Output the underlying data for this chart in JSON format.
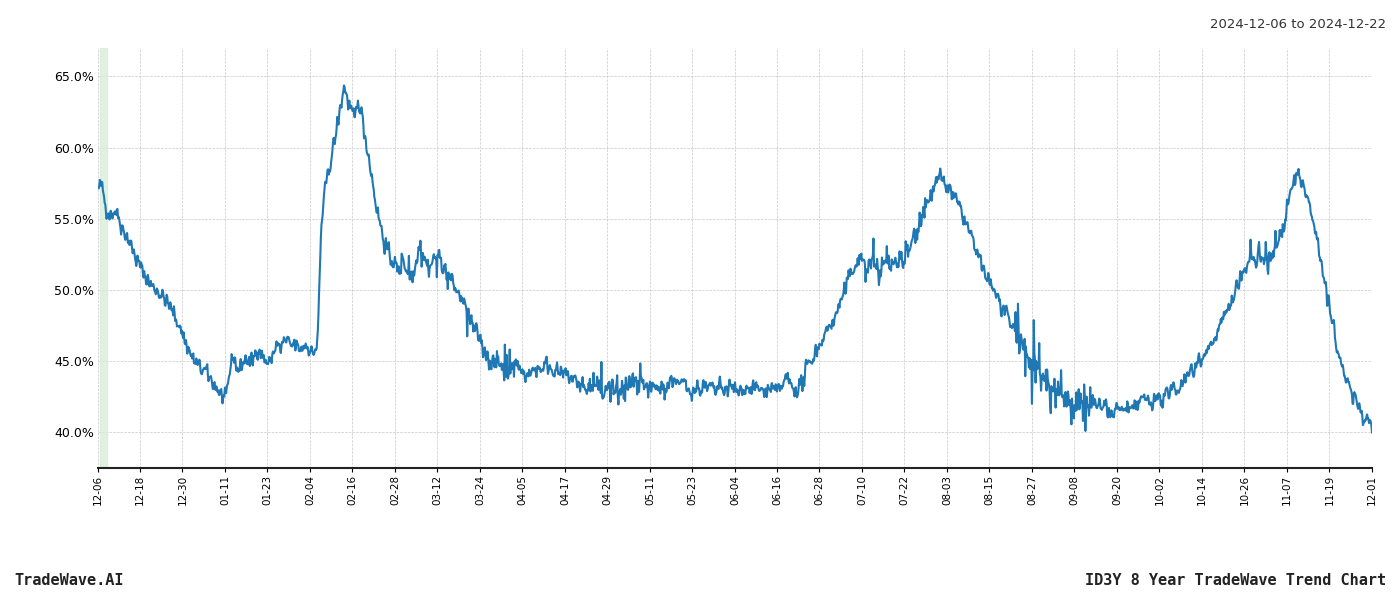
{
  "title_right": "2024-12-06 to 2024-12-22",
  "footer_left": "TradeWave.AI",
  "footer_right": "ID3Y 8 Year TradeWave Trend Chart",
  "line_color": "#1f77b4",
  "line_width": 1.5,
  "bg_color": "#ffffff",
  "grid_color": "#bbbbbb",
  "highlight_color": "#d4ecd4",
  "highlight_alpha": 0.7,
  "ylim": [
    0.375,
    0.67
  ],
  "yticks": [
    0.4,
    0.45,
    0.5,
    0.55,
    0.6,
    0.65
  ],
  "x_tick_labels": [
    "12-06",
    "12-18",
    "12-30",
    "01-11",
    "01-23",
    "02-04",
    "02-16",
    "02-28",
    "03-12",
    "03-24",
    "04-05",
    "04-17",
    "04-29",
    "05-11",
    "05-23",
    "06-04",
    "06-16",
    "06-28",
    "07-10",
    "07-22",
    "08-03",
    "08-15",
    "08-27",
    "09-08",
    "09-20",
    "10-02",
    "10-14",
    "10-26",
    "11-07",
    "11-19",
    "12-01"
  ],
  "control_points": [
    [
      0.0,
      0.57
    ],
    [
      0.002,
      0.575
    ],
    [
      0.004,
      0.568
    ],
    [
      0.006,
      0.558
    ],
    [
      0.008,
      0.555
    ],
    [
      0.01,
      0.553
    ],
    [
      0.013,
      0.556
    ],
    [
      0.016,
      0.552
    ],
    [
      0.018,
      0.545
    ],
    [
      0.021,
      0.54
    ],
    [
      0.024,
      0.535
    ],
    [
      0.027,
      0.528
    ],
    [
      0.03,
      0.521
    ],
    [
      0.034,
      0.515
    ],
    [
      0.038,
      0.508
    ],
    [
      0.042,
      0.503
    ],
    [
      0.046,
      0.5
    ],
    [
      0.05,
      0.496
    ],
    [
      0.055,
      0.49
    ],
    [
      0.06,
      0.482
    ],
    [
      0.065,
      0.472
    ],
    [
      0.07,
      0.46
    ],
    [
      0.075,
      0.45
    ],
    [
      0.08,
      0.445
    ],
    [
      0.085,
      0.442
    ],
    [
      0.09,
      0.435
    ],
    [
      0.095,
      0.428
    ],
    [
      0.1,
      0.422
    ],
    [
      0.104,
      0.448
    ],
    [
      0.106,
      0.455
    ],
    [
      0.108,
      0.448
    ],
    [
      0.11,
      0.443
    ],
    [
      0.113,
      0.448
    ],
    [
      0.116,
      0.452
    ],
    [
      0.119,
      0.448
    ],
    [
      0.122,
      0.452
    ],
    [
      0.125,
      0.46
    ],
    [
      0.128,
      0.455
    ],
    [
      0.131,
      0.45
    ],
    [
      0.134,
      0.448
    ],
    [
      0.137,
      0.455
    ],
    [
      0.14,
      0.462
    ],
    [
      0.143,
      0.458
    ],
    [
      0.146,
      0.465
    ],
    [
      0.149,
      0.463
    ],
    [
      0.152,
      0.46
    ],
    [
      0.154,
      0.463
    ],
    [
      0.156,
      0.46
    ],
    [
      0.159,
      0.458
    ],
    [
      0.162,
      0.462
    ],
    [
      0.165,
      0.46
    ],
    [
      0.168,
      0.455
    ],
    [
      0.17,
      0.458
    ],
    [
      0.172,
      0.46
    ],
    [
      0.175,
      0.545
    ],
    [
      0.178,
      0.57
    ],
    [
      0.181,
      0.585
    ],
    [
      0.184,
      0.598
    ],
    [
      0.186,
      0.607
    ],
    [
      0.188,
      0.618
    ],
    [
      0.19,
      0.628
    ],
    [
      0.192,
      0.638
    ],
    [
      0.193,
      0.645
    ],
    [
      0.195,
      0.635
    ],
    [
      0.197,
      0.63
    ],
    [
      0.199,
      0.625
    ],
    [
      0.201,
      0.618
    ],
    [
      0.203,
      0.628
    ],
    [
      0.205,
      0.632
    ],
    [
      0.207,
      0.622
    ],
    [
      0.209,
      0.61
    ],
    [
      0.212,
      0.595
    ],
    [
      0.215,
      0.578
    ],
    [
      0.218,
      0.56
    ],
    [
      0.221,
      0.548
    ],
    [
      0.224,
      0.535
    ],
    [
      0.227,
      0.527
    ],
    [
      0.23,
      0.522
    ],
    [
      0.233,
      0.518
    ],
    [
      0.236,
      0.512
    ],
    [
      0.239,
      0.52
    ],
    [
      0.242,
      0.515
    ],
    [
      0.245,
      0.51
    ],
    [
      0.248,
      0.512
    ],
    [
      0.251,
      0.53
    ],
    [
      0.254,
      0.528
    ],
    [
      0.257,
      0.52
    ],
    [
      0.26,
      0.515
    ],
    [
      0.263,
      0.522
    ],
    [
      0.266,
      0.525
    ],
    [
      0.269,
      0.52
    ],
    [
      0.272,
      0.515
    ],
    [
      0.275,
      0.51
    ],
    [
      0.278,
      0.505
    ],
    [
      0.281,
      0.5
    ],
    [
      0.284,
      0.495
    ],
    [
      0.287,
      0.49
    ],
    [
      0.29,
      0.483
    ],
    [
      0.294,
      0.475
    ],
    [
      0.298,
      0.468
    ],
    [
      0.302,
      0.46
    ],
    [
      0.306,
      0.453
    ],
    [
      0.31,
      0.448
    ],
    [
      0.314,
      0.45
    ],
    [
      0.318,
      0.445
    ],
    [
      0.322,
      0.443
    ],
    [
      0.326,
      0.45
    ],
    [
      0.33,
      0.445
    ],
    [
      0.334,
      0.442
    ],
    [
      0.338,
      0.44
    ],
    [
      0.343,
      0.445
    ],
    [
      0.348,
      0.445
    ],
    [
      0.352,
      0.448
    ],
    [
      0.356,
      0.445
    ],
    [
      0.36,
      0.443
    ],
    [
      0.364,
      0.44
    ],
    [
      0.368,
      0.44
    ],
    [
      0.372,
      0.438
    ],
    [
      0.376,
      0.435
    ],
    [
      0.38,
      0.432
    ],
    [
      0.384,
      0.43
    ],
    [
      0.388,
      0.43
    ],
    [
      0.392,
      0.432
    ],
    [
      0.396,
      0.428
    ],
    [
      0.4,
      0.43
    ],
    [
      0.404,
      0.432
    ],
    [
      0.408,
      0.428
    ],
    [
      0.412,
      0.43
    ],
    [
      0.415,
      0.435
    ],
    [
      0.418,
      0.432
    ],
    [
      0.421,
      0.435
    ],
    [
      0.424,
      0.432
    ],
    [
      0.427,
      0.435
    ],
    [
      0.43,
      0.432
    ],
    [
      0.433,
      0.43
    ],
    [
      0.436,
      0.432
    ],
    [
      0.439,
      0.43
    ],
    [
      0.442,
      0.432
    ],
    [
      0.445,
      0.43
    ],
    [
      0.448,
      0.435
    ],
    [
      0.452,
      0.438
    ],
    [
      0.456,
      0.432
    ],
    [
      0.46,
      0.435
    ],
    [
      0.463,
      0.43
    ],
    [
      0.465,
      0.432
    ],
    [
      0.467,
      0.428
    ],
    [
      0.47,
      0.432
    ],
    [
      0.472,
      0.43
    ],
    [
      0.475,
      0.432
    ],
    [
      0.478,
      0.43
    ],
    [
      0.481,
      0.432
    ],
    [
      0.484,
      0.428
    ],
    [
      0.487,
      0.432
    ],
    [
      0.49,
      0.43
    ],
    [
      0.493,
      0.43
    ],
    [
      0.496,
      0.432
    ],
    [
      0.499,
      0.43
    ],
    [
      0.502,
      0.428
    ],
    [
      0.505,
      0.43
    ],
    [
      0.508,
      0.432
    ],
    [
      0.511,
      0.43
    ],
    [
      0.514,
      0.432
    ],
    [
      0.517,
      0.43
    ],
    [
      0.52,
      0.43
    ],
    [
      0.524,
      0.428
    ],
    [
      0.528,
      0.432
    ],
    [
      0.532,
      0.428
    ],
    [
      0.535,
      0.43
    ],
    [
      0.538,
      0.435
    ],
    [
      0.541,
      0.438
    ],
    [
      0.544,
      0.432
    ],
    [
      0.547,
      0.43
    ],
    [
      0.55,
      0.432
    ],
    [
      0.553,
      0.435
    ],
    [
      0.556,
      0.445
    ],
    [
      0.559,
      0.45
    ],
    [
      0.562,
      0.455
    ],
    [
      0.565,
      0.46
    ],
    [
      0.568,
      0.465
    ],
    [
      0.571,
      0.47
    ],
    [
      0.574,
      0.475
    ],
    [
      0.578,
      0.48
    ],
    [
      0.582,
      0.49
    ],
    [
      0.586,
      0.5
    ],
    [
      0.59,
      0.51
    ],
    [
      0.594,
      0.518
    ],
    [
      0.598,
      0.522
    ],
    [
      0.601,
      0.52
    ],
    [
      0.604,
      0.515
    ],
    [
      0.607,
      0.52
    ],
    [
      0.61,
      0.518
    ],
    [
      0.613,
      0.515
    ],
    [
      0.616,
      0.518
    ],
    [
      0.619,
      0.52
    ],
    [
      0.622,
      0.515
    ],
    [
      0.625,
      0.518
    ],
    [
      0.628,
      0.522
    ],
    [
      0.631,
      0.52
    ],
    [
      0.634,
      0.525
    ],
    [
      0.637,
      0.53
    ],
    [
      0.64,
      0.538
    ],
    [
      0.643,
      0.545
    ],
    [
      0.646,
      0.552
    ],
    [
      0.649,
      0.558
    ],
    [
      0.652,
      0.565
    ],
    [
      0.655,
      0.57
    ],
    [
      0.658,
      0.575
    ],
    [
      0.661,
      0.58
    ],
    [
      0.664,
      0.575
    ],
    [
      0.667,
      0.572
    ],
    [
      0.67,
      0.568
    ],
    [
      0.673,
      0.563
    ],
    [
      0.676,
      0.558
    ],
    [
      0.679,
      0.552
    ],
    [
      0.682,
      0.545
    ],
    [
      0.685,
      0.538
    ],
    [
      0.688,
      0.53
    ],
    [
      0.691,
      0.522
    ],
    [
      0.694,
      0.515
    ],
    [
      0.697,
      0.51
    ],
    [
      0.7,
      0.505
    ],
    [
      0.703,
      0.5
    ],
    [
      0.706,
      0.495
    ],
    [
      0.709,
      0.488
    ],
    [
      0.712,
      0.482
    ],
    [
      0.715,
      0.478
    ],
    [
      0.718,
      0.473
    ],
    [
      0.721,
      0.468
    ],
    [
      0.724,
      0.463
    ],
    [
      0.727,
      0.46
    ],
    [
      0.73,
      0.455
    ],
    [
      0.733,
      0.45
    ],
    [
      0.736,
      0.448
    ],
    [
      0.739,
      0.442
    ],
    [
      0.742,
      0.438
    ],
    [
      0.745,
      0.435
    ],
    [
      0.748,
      0.432
    ],
    [
      0.751,
      0.43
    ],
    [
      0.754,
      0.428
    ],
    [
      0.757,
      0.427
    ],
    [
      0.76,
      0.425
    ],
    [
      0.763,
      0.42
    ],
    [
      0.766,
      0.415
    ],
    [
      0.769,
      0.418
    ],
    [
      0.772,
      0.42
    ],
    [
      0.775,
      0.415
    ],
    [
      0.778,
      0.418
    ],
    [
      0.781,
      0.422
    ],
    [
      0.784,
      0.418
    ],
    [
      0.787,
      0.415
    ],
    [
      0.79,
      0.42
    ],
    [
      0.793,
      0.415
    ],
    [
      0.796,
      0.412
    ],
    [
      0.799,
      0.415
    ],
    [
      0.802,
      0.418
    ],
    [
      0.805,
      0.415
    ],
    [
      0.808,
      0.418
    ],
    [
      0.811,
      0.415
    ],
    [
      0.814,
      0.418
    ],
    [
      0.817,
      0.422
    ],
    [
      0.82,
      0.425
    ],
    [
      0.823,
      0.422
    ],
    [
      0.826,
      0.42
    ],
    [
      0.829,
      0.422
    ],
    [
      0.832,
      0.425
    ],
    [
      0.835,
      0.422
    ],
    [
      0.838,
      0.425
    ],
    [
      0.841,
      0.428
    ],
    [
      0.844,
      0.432
    ],
    [
      0.847,
      0.43
    ],
    [
      0.85,
      0.435
    ],
    [
      0.853,
      0.438
    ],
    [
      0.856,
      0.442
    ],
    [
      0.859,
      0.445
    ],
    [
      0.862,
      0.448
    ],
    [
      0.865,
      0.452
    ],
    [
      0.868,
      0.455
    ],
    [
      0.871,
      0.458
    ],
    [
      0.874,
      0.462
    ],
    [
      0.877,
      0.468
    ],
    [
      0.88,
      0.475
    ],
    [
      0.883,
      0.48
    ],
    [
      0.886,
      0.485
    ],
    [
      0.889,
      0.49
    ],
    [
      0.892,
      0.498
    ],
    [
      0.895,
      0.505
    ],
    [
      0.898,
      0.512
    ],
    [
      0.901,
      0.518
    ],
    [
      0.904,
      0.522
    ],
    [
      0.907,
      0.52
    ],
    [
      0.91,
      0.522
    ],
    [
      0.913,
      0.525
    ],
    [
      0.916,
      0.522
    ],
    [
      0.919,
      0.52
    ],
    [
      0.922,
      0.525
    ],
    [
      0.925,
      0.53
    ],
    [
      0.928,
      0.538
    ],
    [
      0.931,
      0.545
    ],
    [
      0.933,
      0.555
    ],
    [
      0.935,
      0.565
    ],
    [
      0.937,
      0.572
    ],
    [
      0.939,
      0.578
    ],
    [
      0.941,
      0.582
    ],
    [
      0.943,
      0.58
    ],
    [
      0.945,
      0.575
    ],
    [
      0.947,
      0.568
    ],
    [
      0.949,
      0.562
    ],
    [
      0.951,
      0.558
    ],
    [
      0.953,
      0.552
    ],
    [
      0.955,
      0.545
    ],
    [
      0.957,
      0.535
    ],
    [
      0.959,
      0.525
    ],
    [
      0.961,
      0.515
    ],
    [
      0.963,
      0.505
    ],
    [
      0.965,
      0.495
    ],
    [
      0.967,
      0.483
    ],
    [
      0.969,
      0.475
    ],
    [
      0.971,
      0.465
    ],
    [
      0.973,
      0.458
    ],
    [
      0.975,
      0.45
    ],
    [
      0.977,
      0.445
    ],
    [
      0.979,
      0.44
    ],
    [
      0.981,
      0.435
    ],
    [
      0.983,
      0.43
    ],
    [
      0.985,
      0.425
    ],
    [
      0.987,
      0.422
    ],
    [
      0.989,
      0.418
    ],
    [
      0.991,
      0.415
    ],
    [
      0.993,
      0.412
    ],
    [
      0.995,
      0.41
    ],
    [
      0.997,
      0.408
    ],
    [
      1.0,
      0.405
    ]
  ]
}
